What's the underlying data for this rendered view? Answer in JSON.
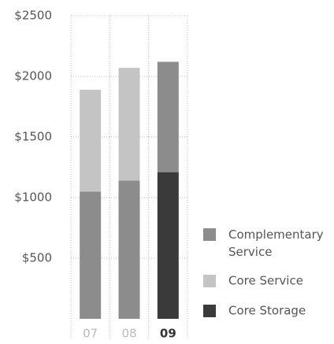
{
  "chart_data": {
    "type": "stacked_bar",
    "categories": [
      "07",
      "08",
      "09"
    ],
    "highlight_category": 2,
    "series": [
      {
        "name": "Core Storage",
        "color": "#3a3a3a",
        "point_colors": [
          "#8c8c8c",
          "#8c8c8c",
          "#3a3a3a"
        ],
        "values": [
          1050,
          1140,
          1210
        ]
      },
      {
        "name": "Core Service",
        "color": "#c4c4c4",
        "point_colors": [
          "#c4c4c4",
          "#c4c4c4",
          "#c4c4c4"
        ],
        "values": [
          840,
          930,
          null
        ]
      },
      {
        "name": "Complementary Service",
        "color": "#8c8c8c",
        "point_colors": [
          "#8c8c8c",
          "#8c8c8c",
          "#8c8c8c"
        ],
        "values": [
          null,
          null,
          910
        ]
      }
    ],
    "legend_order": [
      2,
      1,
      0
    ],
    "ylim": [
      0,
      2500
    ],
    "yticks": [
      {
        "value": 500,
        "label": "$500"
      },
      {
        "value": 1000,
        "label": "$1000"
      },
      {
        "value": 1500,
        "label": "$1500"
      },
      {
        "value": 2000,
        "label": "$2000"
      },
      {
        "value": 2500,
        "label": "$2500"
      }
    ],
    "grid": true
  }
}
